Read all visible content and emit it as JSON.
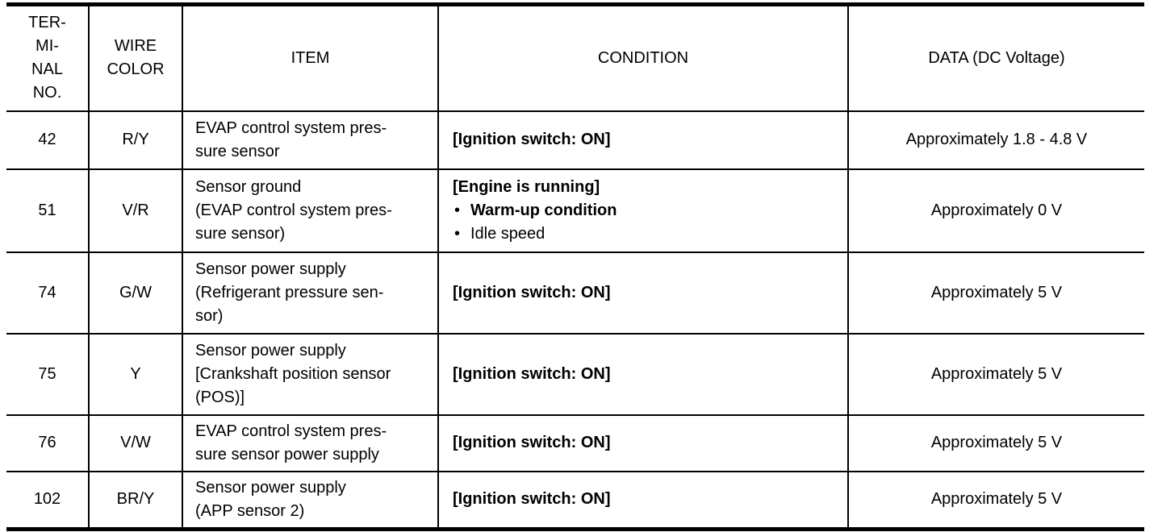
{
  "headers": [
    "TER-\nMI-\nNAL\nNO.",
    "WIRE\nCOLOR",
    "ITEM",
    "CONDITION",
    "DATA (DC Voltage)"
  ],
  "rows": [
    {
      "terminal": "42",
      "wire": "R/Y",
      "item": "EVAP control system pres-\nsure sensor",
      "condition": {
        "main": "[Ignition switch: ON]",
        "bullets": []
      },
      "data": "Approximately 1.8 - 4.8 V"
    },
    {
      "terminal": "51",
      "wire": "V/R",
      "item": "Sensor ground\n(EVAP control system pres-\nsure sensor)",
      "condition": {
        "main": "[Engine is running]",
        "bullets": [
          {
            "text": "Warm-up condition",
            "bold": true
          },
          {
            "text": "Idle speed",
            "bold": false
          }
        ]
      },
      "data": "Approximately 0 V"
    },
    {
      "terminal": "74",
      "wire": "G/W",
      "item": "Sensor power supply\n(Refrigerant pressure sen-\nsor)",
      "condition": {
        "main": "[Ignition switch: ON]",
        "bullets": []
      },
      "data": "Approximately 5 V"
    },
    {
      "terminal": "75",
      "wire": "Y",
      "item": "Sensor power supply\n[Crankshaft position sensor\n(POS)]",
      "condition": {
        "main": "[Ignition switch: ON]",
        "bullets": []
      },
      "data": "Approximately 5 V"
    },
    {
      "terminal": "76",
      "wire": "V/W",
      "item": "EVAP control system pres-\nsure sensor power supply",
      "condition": {
        "main": "[Ignition switch: ON]",
        "bullets": []
      },
      "data": "Approximately 5 V"
    },
    {
      "terminal": "102",
      "wire": "BR/Y",
      "item": "Sensor power supply\n(APP sensor 2)",
      "condition": {
        "main": "[Ignition switch: ON]",
        "bullets": []
      },
      "data": "Approximately 5 V"
    }
  ]
}
